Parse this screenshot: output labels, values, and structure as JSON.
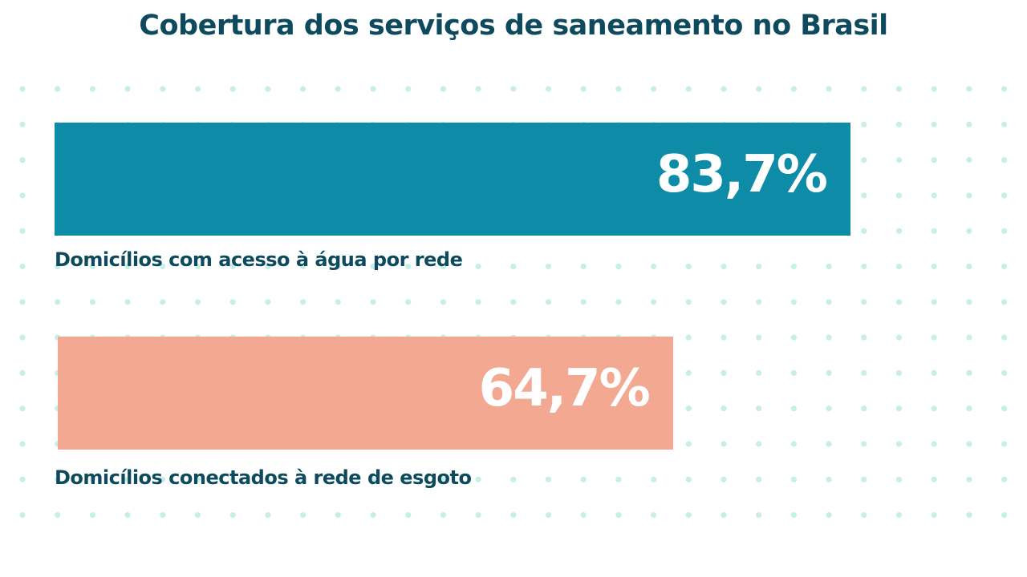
{
  "chart_data": {
    "type": "bar",
    "orientation": "horizontal",
    "title": "Cobertura dos serviços de saneamento no Brasil",
    "categories": [
      "Domicílios com acesso à água por rede",
      "Domicílios conectados à rede de esgoto"
    ],
    "values": [
      83.7,
      64.7
    ],
    "value_labels": [
      "83,7%",
      "64,7%"
    ],
    "xlim": [
      0,
      100
    ],
    "colors": [
      "#0e8ca7",
      "#f3a892"
    ],
    "dot_color": "#c8efe6",
    "title_color": "#0d4a5e"
  }
}
